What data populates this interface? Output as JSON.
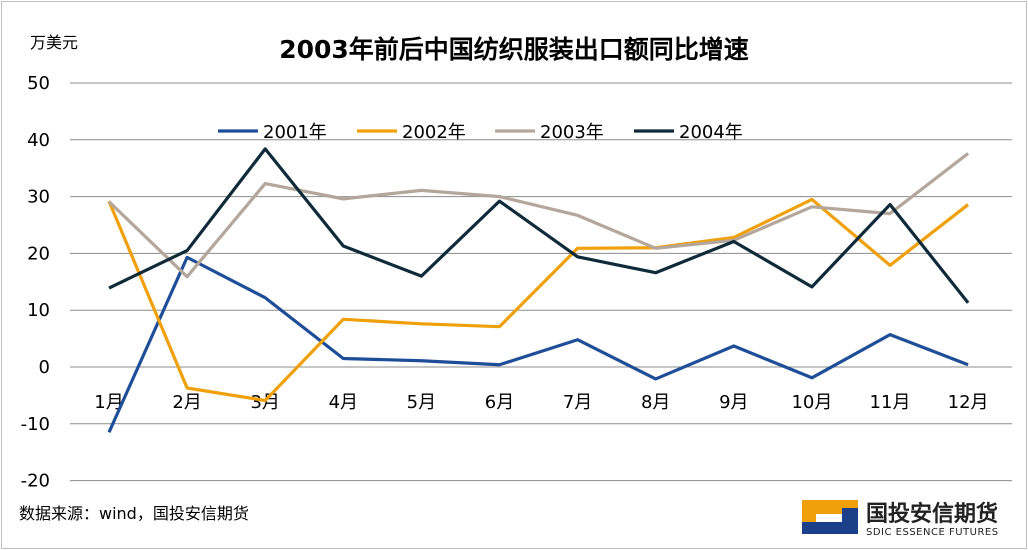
{
  "chart_data": {
    "type": "line",
    "title": "2003年前后中国纺织服装出口额同比增速",
    "ylabel": "万美元",
    "xlabel": "",
    "ylim": [
      -20,
      50
    ],
    "yticks": [
      -20,
      -10,
      0,
      10,
      20,
      30,
      40,
      50
    ],
    "grid": true,
    "legend_position": "top",
    "categories": [
      "1月",
      "2月",
      "3月",
      "4月",
      "5月",
      "6月",
      "7月",
      "8月",
      "9月",
      "10月",
      "11月",
      "12月"
    ],
    "series": [
      {
        "name": "2001年",
        "color": "#1f4e98",
        "values": [
          -11.5,
          19.3,
          12.2,
          1.5,
          1.1,
          0.4,
          4.8,
          -2.1,
          3.7,
          -1.9,
          5.7,
          0.4
        ]
      },
      {
        "name": "2002年",
        "color": "#f0a00a",
        "values": [
          29.2,
          -3.7,
          -5.9,
          8.4,
          7.6,
          7.1,
          20.9,
          21.0,
          22.8,
          29.5,
          17.9,
          28.6
        ]
      },
      {
        "name": "2003年",
        "color": "#b3a69b",
        "values": [
          29.1,
          15.9,
          32.3,
          29.6,
          31.1,
          30.0,
          26.7,
          20.9,
          22.3,
          28.2,
          27.0,
          37.6
        ]
      },
      {
        "name": "2004年",
        "color": "#0f2a38",
        "values": [
          13.9,
          20.5,
          38.4,
          21.3,
          16.0,
          29.2,
          19.4,
          16.6,
          22.1,
          14.1,
          28.6,
          11.3
        ]
      }
    ]
  },
  "source_text": "数据来源：wind，国投安信期货",
  "logo": {
    "cn": "国投安信期货",
    "en": "SDIC ESSENCE FUTURES",
    "color_blue": "#1c3f8a",
    "color_orange": "#f0a00a"
  }
}
